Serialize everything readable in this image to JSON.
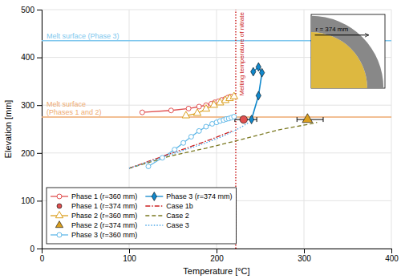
{
  "chart_data": {
    "type": "line",
    "xlabel": "Temperature [°C]",
    "ylabel": "Elevation [mm]",
    "xlim": [
      0,
      400
    ],
    "ylim": [
      0,
      500
    ],
    "xticks": [
      0,
      100,
      200,
      300,
      400
    ],
    "yticks": [
      0,
      100,
      200,
      300,
      400,
      500
    ],
    "grid": true,
    "legend": "lower left",
    "series": [
      {
        "name": "Phase 1 (r=360 mm)",
        "color": "#e05050",
        "marker": "circle-open",
        "line_style": "solid",
        "x": [
          115,
          148,
          168,
          180,
          188,
          194,
          198,
          202,
          206,
          210,
          213,
          216
        ],
        "values": [
          285,
          289,
          293,
          297,
          300,
          303,
          306,
          308,
          311,
          313,
          316,
          318
        ]
      },
      {
        "name": "Phase 1 (r=374 mm)",
        "color": "#e05050",
        "marker": "circle",
        "line_style": "none",
        "x": [
          231
        ],
        "values": [
          270
        ],
        "xerr_minus": [
          10
        ],
        "xerr_plus": [
          15
        ]
      },
      {
        "name": "Phase 2 (r=360 mm)",
        "color": "#dba020",
        "marker": "triangle-open",
        "line_style": "solid",
        "x": [
          165,
          178,
          188,
          197,
          204,
          210,
          215,
          220
        ],
        "values": [
          278,
          283,
          292,
          300,
          305,
          310,
          314,
          318
        ]
      },
      {
        "name": "Phase 2 (r=374 mm)",
        "color": "#dba020",
        "marker": "triangle",
        "line_style": "none",
        "x": [
          304
        ],
        "values": [
          270
        ],
        "xerr_minus": [
          12
        ],
        "xerr_plus": [
          18
        ]
      },
      {
        "name": "Phase 3 (r=360 mm)",
        "color": "#60b8e8",
        "marker": "circle-open",
        "line_style": "solid",
        "x": [
          122,
          138,
          152,
          162,
          171,
          180,
          188,
          195,
          200,
          204,
          208,
          211,
          214,
          217,
          220
        ],
        "values": [
          172,
          190,
          207,
          221,
          234,
          246,
          255,
          261,
          264,
          267,
          269,
          271,
          272,
          274,
          276
        ]
      },
      {
        "name": "Phase 3 (r=374 mm)",
        "color": "#1088cc",
        "marker": "diamond",
        "line_style": "solid",
        "x": [
          240,
          248,
          252,
          248,
          242
        ],
        "values": [
          270,
          320,
          368,
          380,
          370
        ]
      },
      {
        "name": "Case 1b",
        "color": "#cc2222",
        "marker": "none",
        "line_style": "dashdot",
        "x": [
          100,
          143,
          167,
          193,
          218
        ],
        "values": [
          168,
          196,
          211,
          228,
          246
        ]
      },
      {
        "name": "Case 2",
        "color": "#7a7820",
        "marker": "none",
        "line_style": "dashed",
        "x": [
          100,
          148,
          188,
          228,
          270,
          308,
          315
        ],
        "values": [
          168,
          194,
          210,
          228,
          248,
          261,
          264
        ]
      },
      {
        "name": "Case 3",
        "color": "#50a8e8",
        "marker": "none",
        "line_style": "dotted",
        "x": [
          100,
          138,
          163,
          186,
          206,
          220,
          230,
          237
        ],
        "values": [
          168,
          191,
          206,
          220,
          234,
          246,
          256,
          264
        ]
      }
    ],
    "reference_lines": [
      {
        "axis": "y",
        "value": 435,
        "label": "Melt surface (Phase 3)",
        "color": "#80c8ee",
        "line_style": "solid"
      },
      {
        "axis": "y",
        "value": 275,
        "label": "Melt surface\n(Phases 1 and 2)",
        "color": "#eeaa70",
        "line_style": "solid"
      },
      {
        "axis": "x",
        "value": 222,
        "label": "Melting temperature of nitrate",
        "color": "#cc2222",
        "line_style": "dotted"
      }
    ],
    "inset": {
      "label": "r = 374 mm",
      "fill_color": "#ddb840",
      "wall_color": "#888888"
    }
  }
}
